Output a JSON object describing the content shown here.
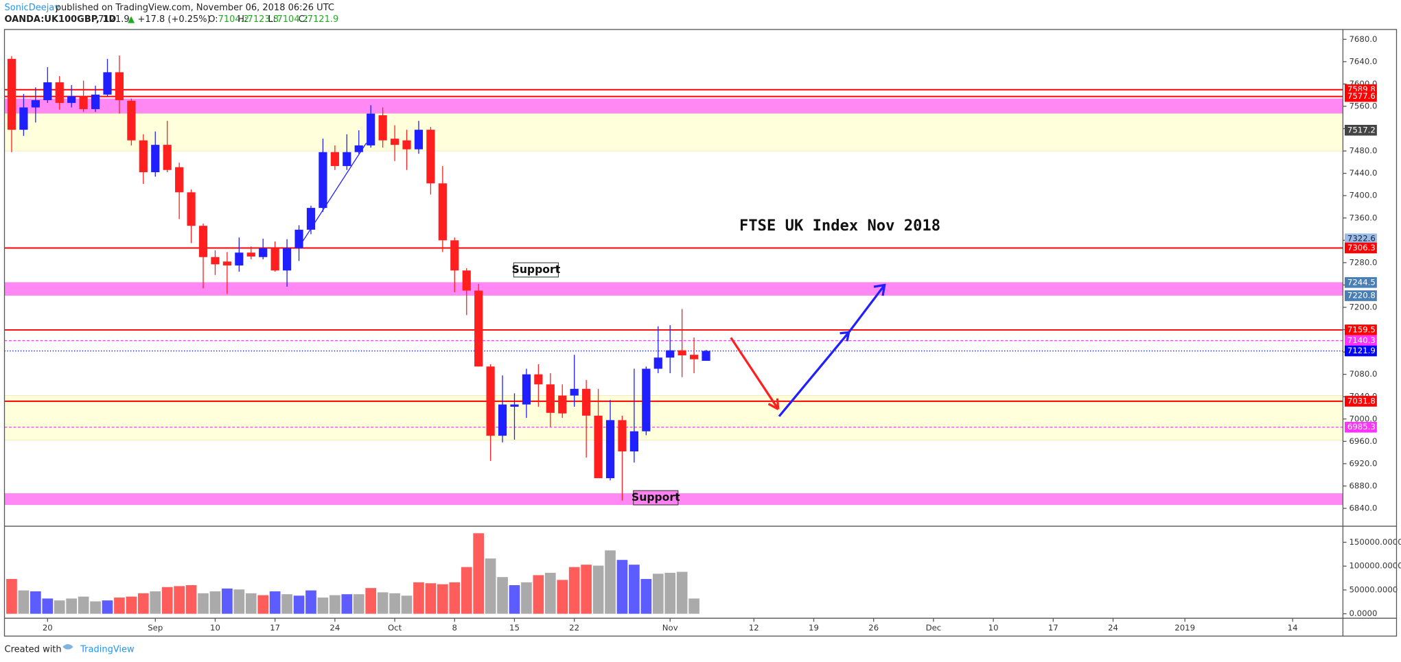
{
  "header": {
    "author": "SonicDeejay",
    "published": "published on TradingView.com, November 06, 2018 06:26 UTC",
    "symbol": "OANDA:UK100GBP, 1D",
    "change_arrow": "▲",
    "change": "+17.8 (+0.25%)",
    "o_label": "O:",
    "h_label": "H:",
    "l_label": "L:",
    "c_label": "C:"
  },
  "footer": {
    "created": "Created with",
    "brand": "TradingView"
  },
  "chart_data": {
    "type": "candlestick",
    "title": "FTSE UK Index Nov 2018",
    "annotations": [
      {
        "text": "Support",
        "x": 43.8,
        "y": 7267,
        "color": "#ffffff"
      },
      {
        "text": "Support",
        "x": 53.8,
        "y": 6859,
        "color": "#ff80f0"
      }
    ],
    "up_color": "#1f1fff",
    "down_color": "#ff1f1f",
    "candles": [
      {
        "o": 7645,
        "h": 7650,
        "l": 7478,
        "c": 7518
      },
      {
        "o": 7518,
        "h": 7582,
        "l": 7507,
        "c": 7558
      },
      {
        "o": 7558,
        "h": 7594,
        "l": 7531,
        "c": 7571
      },
      {
        "o": 7571,
        "h": 7630,
        "l": 7566,
        "c": 7603
      },
      {
        "o": 7603,
        "h": 7614,
        "l": 7554,
        "c": 7566
      },
      {
        "o": 7566,
        "h": 7598,
        "l": 7558,
        "c": 7578
      },
      {
        "o": 7578,
        "h": 7606,
        "l": 7550,
        "c": 7555
      },
      {
        "o": 7555,
        "h": 7597,
        "l": 7550,
        "c": 7581
      },
      {
        "o": 7581,
        "h": 7645,
        "l": 7578,
        "c": 7621
      },
      {
        "o": 7621,
        "h": 7651,
        "l": 7547,
        "c": 7571
      },
      {
        "o": 7570,
        "h": 7574,
        "l": 7490,
        "c": 7499
      },
      {
        "o": 7499,
        "h": 7510,
        "l": 7421,
        "c": 7442
      },
      {
        "o": 7442,
        "h": 7515,
        "l": 7434,
        "c": 7491
      },
      {
        "o": 7491,
        "h": 7534,
        "l": 7442,
        "c": 7446
      },
      {
        "o": 7451,
        "h": 7459,
        "l": 7358,
        "c": 7406
      },
      {
        "o": 7406,
        "h": 7411,
        "l": 7315,
        "c": 7346
      },
      {
        "o": 7346,
        "h": 7350,
        "l": 7234,
        "c": 7290
      },
      {
        "o": 7290,
        "h": 7302,
        "l": 7258,
        "c": 7277
      },
      {
        "o": 7282,
        "h": 7299,
        "l": 7224,
        "c": 7275
      },
      {
        "o": 7275,
        "h": 7325,
        "l": 7264,
        "c": 7298
      },
      {
        "o": 7298,
        "h": 7309,
        "l": 7286,
        "c": 7291
      },
      {
        "o": 7290,
        "h": 7323,
        "l": 7286,
        "c": 7306
      },
      {
        "o": 7306,
        "h": 7318,
        "l": 7264,
        "c": 7266
      },
      {
        "o": 7266,
        "h": 7322,
        "l": 7237,
        "c": 7306
      },
      {
        "o": 7306,
        "h": 7347,
        "l": 7283,
        "c": 7339
      },
      {
        "o": 7339,
        "h": 7382,
        "l": 7331,
        "c": 7378
      },
      {
        "o": 7378,
        "h": 7502,
        "l": 7371,
        "c": 7478
      },
      {
        "o": 7478,
        "h": 7490,
        "l": 7446,
        "c": 7453
      },
      {
        "o": 7453,
        "h": 7510,
        "l": 7446,
        "c": 7478
      },
      {
        "o": 7478,
        "h": 7517,
        "l": 7475,
        "c": 7490
      },
      {
        "o": 7490,
        "h": 7562,
        "l": 7486,
        "c": 7547
      },
      {
        "o": 7544,
        "h": 7558,
        "l": 7486,
        "c": 7499
      },
      {
        "o": 7502,
        "h": 7526,
        "l": 7462,
        "c": 7491
      },
      {
        "o": 7499,
        "h": 7518,
        "l": 7446,
        "c": 7483
      },
      {
        "o": 7483,
        "h": 7534,
        "l": 7475,
        "c": 7518
      },
      {
        "o": 7518,
        "h": 7523,
        "l": 7402,
        "c": 7422
      },
      {
        "o": 7422,
        "h": 7453,
        "l": 7299,
        "c": 7320
      },
      {
        "o": 7320,
        "h": 7325,
        "l": 7227,
        "c": 7266
      },
      {
        "o": 7266,
        "h": 7270,
        "l": 7186,
        "c": 7230
      },
      {
        "o": 7230,
        "h": 7242,
        "l": 7094,
        "c": 7094
      },
      {
        "o": 7094,
        "h": 7098,
        "l": 6925,
        "c": 6970
      },
      {
        "o": 6970,
        "h": 7078,
        "l": 6958,
        "c": 7026
      },
      {
        "o": 7022,
        "h": 7046,
        "l": 6963,
        "c": 7026
      },
      {
        "o": 7026,
        "h": 7090,
        "l": 7002,
        "c": 7080
      },
      {
        "o": 7080,
        "h": 7098,
        "l": 7022,
        "c": 7062
      },
      {
        "o": 7062,
        "h": 7082,
        "l": 6986,
        "c": 7011
      },
      {
        "o": 7042,
        "h": 7062,
        "l": 7002,
        "c": 7010
      },
      {
        "o": 7042,
        "h": 7115,
        "l": 7022,
        "c": 7054
      },
      {
        "o": 7054,
        "h": 7070,
        "l": 6931,
        "c": 7006
      },
      {
        "o": 7006,
        "h": 7054,
        "l": 6894,
        "c": 6894
      },
      {
        "o": 6894,
        "h": 7034,
        "l": 6890,
        "c": 6998
      },
      {
        "o": 6998,
        "h": 7006,
        "l": 6854,
        "c": 6942
      },
      {
        "o": 6942,
        "h": 7090,
        "l": 6922,
        "c": 6978
      },
      {
        "o": 6978,
        "h": 7094,
        "l": 6971,
        "c": 7090
      },
      {
        "o": 7090,
        "h": 7166,
        "l": 7082,
        "c": 7110
      },
      {
        "o": 7110,
        "h": 7168,
        "l": 7082,
        "c": 7123
      },
      {
        "o": 7123,
        "h": 7197,
        "l": 7075,
        "c": 7114
      },
      {
        "o": 7115,
        "h": 7146,
        "l": 7082,
        "c": 7107
      },
      {
        "o": 7104.2,
        "h": 7123.8,
        "l": 7104.2,
        "c": 7121.9
      }
    ],
    "volume": {
      "values": [
        73000,
        49000,
        47000,
        32000,
        28000,
        32000,
        36000,
        26000,
        28000,
        34000,
        36000,
        43000,
        47000,
        56000,
        58000,
        60000,
        43000,
        47000,
        53000,
        51000,
        43000,
        39000,
        47000,
        41000,
        38000,
        49000,
        34000,
        39000,
        41000,
        41000,
        54000,
        45000,
        43000,
        38000,
        66000,
        64000,
        62000,
        66000,
        98000,
        169000,
        116000,
        77000,
        60000,
        66000,
        81000,
        86000,
        71000,
        98000,
        103000,
        101000,
        133000,
        113000,
        103000,
        73000,
        84000,
        86000,
        88000,
        32000,
        null
      ],
      "colors": [
        "#ff5c5c",
        "#aaaaaa",
        "#5c5cff",
        "#5c5cff",
        "#aaaaaa",
        "#aaaaaa",
        "#aaaaaa",
        "#aaaaaa",
        "#5c5cff",
        "#ff5c5c",
        "#ff5c5c",
        "#ff5c5c",
        "#aaaaaa",
        "#ff5c5c",
        "#ff5c5c",
        "#ff5c5c",
        "#aaaaaa",
        "#aaaaaa",
        "#5c5cff",
        "#aaaaaa",
        "#aaaaaa",
        "#ff5c5c",
        "#5c5cff",
        "#aaaaaa",
        "#5c5cff",
        "#5c5cff",
        "#aaaaaa",
        "#aaaaaa",
        "#5c5cff",
        "#aaaaaa",
        "#ff5c5c",
        "#aaaaaa",
        "#aaaaaa",
        "#aaaaaa",
        "#ff5c5c",
        "#ff5c5c",
        "#ff5c5c",
        "#ff5c5c",
        "#ff5c5c",
        "#ff5c5c",
        "#aaaaaa",
        "#aaaaaa",
        "#5c5cff",
        "#aaaaaa",
        "#ff5c5c",
        "#aaaaaa",
        "#ff5c5c",
        "#ff5c5c",
        "#ff5c5c",
        "#aaaaaa",
        "#aaaaaa",
        "#5c5cff",
        "#5c5cff",
        "#5c5cff",
        "#aaaaaa",
        "#aaaaaa",
        "#aaaaaa",
        "#aaaaaa",
        "#aaaaaa"
      ],
      "ylim": [
        -9375,
        181875
      ],
      "yticks": [
        {
          "value": 0,
          "label": "0.0000"
        },
        {
          "value": 50000,
          "label": "50000.0000"
        },
        {
          "value": 100000,
          "label": "100000.0000"
        },
        {
          "value": 150000,
          "label": "150000.0000"
        }
      ]
    },
    "xlim": [
      -0.6,
      111.2
    ],
    "xticks": [
      {
        "value": 3,
        "label": "20"
      },
      {
        "value": 12,
        "label": "Sep"
      },
      {
        "value": 17,
        "label": "10"
      },
      {
        "value": 22,
        "label": "17"
      },
      {
        "value": 27,
        "label": "24"
      },
      {
        "value": 32,
        "label": "Oct"
      },
      {
        "value": 37,
        "label": "8"
      },
      {
        "value": 42,
        "label": "15"
      },
      {
        "value": 47,
        "label": "22"
      },
      {
        "value": 55,
        "label": "Nov"
      },
      {
        "value": 62,
        "label": "12"
      },
      {
        "value": 67,
        "label": "19"
      },
      {
        "value": 72,
        "label": "26"
      },
      {
        "value": 77,
        "label": "Dec"
      },
      {
        "value": 82,
        "label": "10"
      },
      {
        "value": 87,
        "label": "17"
      },
      {
        "value": 92,
        "label": "24"
      },
      {
        "value": 98,
        "label": "2019"
      },
      {
        "value": 107,
        "label": "14"
      }
    ],
    "ylim": [
      6809.6,
      7697.6
    ],
    "yticks": [
      {
        "value": 6840,
        "label": "6840.0"
      },
      {
        "value": 6880,
        "label": "6880.0"
      },
      {
        "value": 6920,
        "label": "6920.0"
      },
      {
        "value": 6960,
        "label": "6960.0"
      },
      {
        "value": 7000,
        "label": "7000.0"
      },
      {
        "value": 7040,
        "label": "7040.0"
      },
      {
        "value": 7080,
        "label": "7080.0"
      },
      {
        "value": 7120,
        "label": "7120.0"
      },
      {
        "value": 7160,
        "label": "7160.0"
      },
      {
        "value": 7200,
        "label": "7200.0"
      },
      {
        "value": 7240,
        "label": "7240.0"
      },
      {
        "value": 7280,
        "label": "7280.0"
      },
      {
        "value": 7320,
        "label": "7320.0"
      },
      {
        "value": 7360,
        "label": "7360.0"
      },
      {
        "value": 7400,
        "label": "7400.0"
      },
      {
        "value": 7440,
        "label": "7440.0"
      },
      {
        "value": 7480,
        "label": "7480.0"
      },
      {
        "value": 7520,
        "label": "7520.0"
      },
      {
        "value": 7560,
        "label": "7560.0"
      },
      {
        "value": 7600,
        "label": "7600.0"
      },
      {
        "value": 7640,
        "label": "7640.0"
      },
      {
        "value": 7680,
        "label": "7680.0"
      }
    ],
    "zones": [
      {
        "from": 7547,
        "to": 7574,
        "color": "#ff88f4"
      },
      {
        "from": 7480,
        "to": 7547,
        "color": "#ffffdc"
      },
      {
        "from": 7221,
        "to": 7245,
        "color": "#ff88f4"
      },
      {
        "from": 6962,
        "to": 7042,
        "color": "#ffffdc"
      },
      {
        "from": 6846,
        "to": 6867,
        "color": "#ff88f4"
      }
    ],
    "levels": [
      {
        "value": 7589.8,
        "color": "#ff0000",
        "style": "solid"
      },
      {
        "value": 7577.6,
        "color": "#ff0000",
        "style": "solid"
      },
      {
        "value": 7306.3,
        "color": "#ff0000",
        "style": "solid"
      },
      {
        "value": 7159.5,
        "color": "#ff0000",
        "style": "solid"
      },
      {
        "value": 7140.3,
        "color": "#ff33ff",
        "style": "dashed"
      },
      {
        "value": 7121.9,
        "color": "#0000ff",
        "style": "dotted"
      },
      {
        "value": 7031.8,
        "color": "#ff0000",
        "style": "solid"
      },
      {
        "value": 6985.3,
        "color": "#ff33ff",
        "style": "dashed"
      }
    ],
    "price_labels": [
      {
        "value": 7589.8,
        "color": "#ff0000"
      },
      {
        "value": 7577.6,
        "color": "#ff0000"
      },
      {
        "value": 7517.2,
        "color": "#444444"
      },
      {
        "value": 7322.6,
        "color": "#9dbbe8"
      },
      {
        "value": 7306.3,
        "color": "#ff0000"
      },
      {
        "value": 7244.5,
        "color": "#4a7fb5"
      },
      {
        "value": 7220.8,
        "color": "#4a7fb5"
      },
      {
        "value": 7159.5,
        "color": "#ff0000"
      },
      {
        "value": 7140.3,
        "color": "#ff33ff"
      },
      {
        "value": 7121.9,
        "color": "#0000ff"
      },
      {
        "value": 7031.8,
        "color": "#ff0000"
      },
      {
        "value": 6985.3,
        "color": "#ff33ff"
      }
    ]
  }
}
